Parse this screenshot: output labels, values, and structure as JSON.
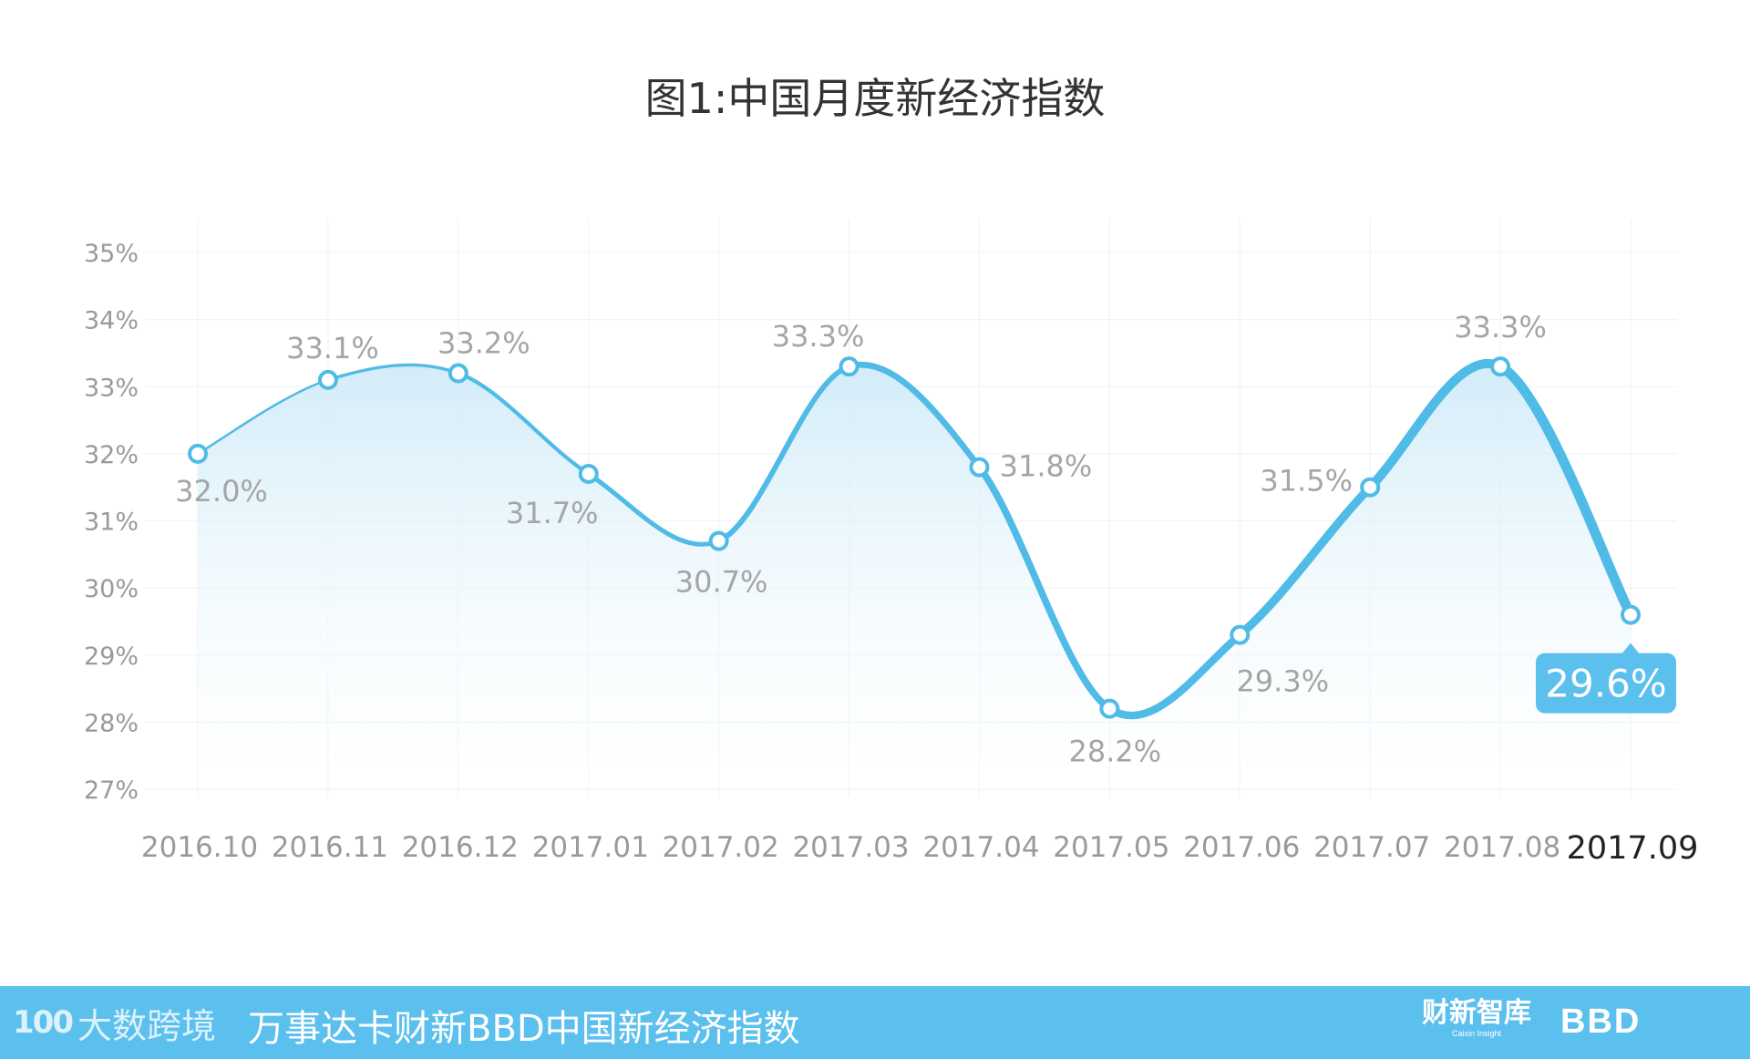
{
  "title": "图1:中国月度新经济指数",
  "chart_data": {
    "type": "area",
    "title": "图1:中国月度新经济指数",
    "xlabel": "",
    "ylabel": "",
    "categories": [
      "2016.10",
      "2016.11",
      "2016.12",
      "2017.01",
      "2017.02",
      "2017.03",
      "2017.04",
      "2017.05",
      "2017.06",
      "2017.07",
      "2017.08",
      "2017.09"
    ],
    "series": [
      {
        "values": [
          32.0,
          33.1,
          33.2,
          31.7,
          30.7,
          33.3,
          31.8,
          28.2,
          29.3,
          31.5,
          33.3,
          29.6
        ]
      }
    ],
    "point_labels": [
      "32.0%",
      "33.1%",
      "33.2%",
      "31.7%",
      "30.7%",
      "33.3%",
      "31.8%",
      "28.2%",
      "29.3%",
      "31.5%",
      "33.3%",
      "29.6%"
    ],
    "ylim": [
      27,
      35
    ],
    "y_ticks": [
      "27%",
      "28%",
      "29%",
      "30%",
      "31%",
      "32%",
      "33%",
      "34%",
      "35%"
    ],
    "y_tick_values": [
      27,
      28,
      29,
      30,
      31,
      32,
      33,
      34,
      35
    ],
    "grid": true,
    "highlight_index": 11,
    "line_color": "#4fbbe6",
    "fill_color": "#d6eefa",
    "highlight_label_bg": "#5cc0ee"
  },
  "footer": {
    "brand_mark": "100",
    "brand_name": "大数跨境",
    "title": "万事达卡财新BBD中国新经济指数",
    "partner_caixin": "财新智库",
    "partner_caixin_en": "Caixin Insight",
    "partner_bbd": "BBD",
    "background": "#5cc0ee"
  }
}
